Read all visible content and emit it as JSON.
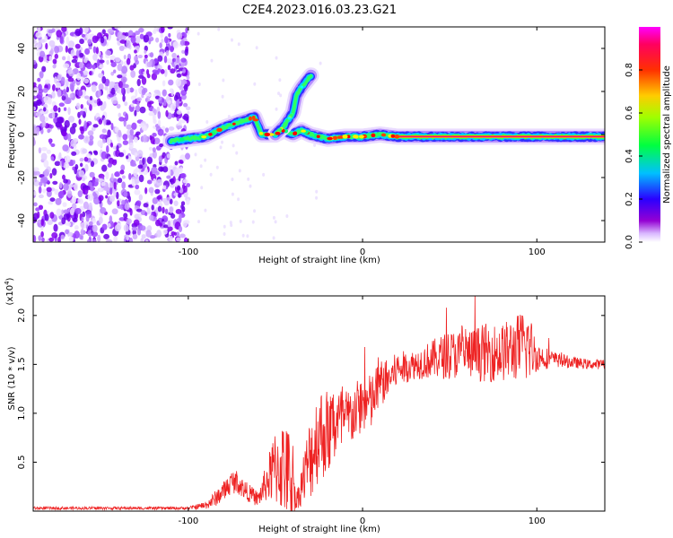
{
  "title": "C2E4.2023.016.03.23.G21",
  "chart_data": [
    {
      "type": "heatmap",
      "xlabel": "Height of straight line (km)",
      "ylabel": "Frequency (Hz)",
      "xlim": [
        -189,
        139
      ],
      "ylim": [
        -50,
        50
      ],
      "x_ticks": [
        -100,
        0,
        100
      ],
      "y_ticks": [
        -40,
        -20,
        0,
        20,
        40
      ],
      "colorbar": {
        "label": "Normalized spectral amplitude",
        "range": [
          0.0,
          1.0
        ],
        "ticks": [
          0.0,
          0.2,
          0.4,
          0.6,
          0.8
        ],
        "colors": [
          "#ffffff",
          "#9400d3",
          "#0000ff",
          "#00ffff",
          "#00ff00",
          "#ffff00",
          "#ff7f00",
          "#ff0000",
          "#ff00ff"
        ]
      },
      "noise_region_x": [
        -189,
        -100
      ],
      "signal_track": {
        "x": [
          -110,
          -100,
          -90,
          -80,
          -70,
          -62,
          -58,
          -50,
          -45,
          -40,
          -35,
          -30,
          -20,
          -10,
          0,
          10,
          20,
          40,
          60,
          80,
          100,
          120,
          139
        ],
        "y": [
          -3,
          -2,
          -1,
          3,
          6,
          8,
          0,
          0,
          2,
          0,
          2,
          0,
          -2,
          -1,
          -1,
          0,
          -1,
          -1,
          -1,
          -1,
          -1,
          -1,
          -1
        ]
      },
      "branch_track": {
        "x": [
          -50,
          -45,
          -40,
          -38,
          -35,
          -32,
          -29
        ],
        "y": [
          0,
          4,
          10,
          18,
          22,
          25,
          28
        ]
      }
    },
    {
      "type": "line",
      "xlabel": "Height of straight line (km)",
      "ylabel": "SNR (10 * v/v)",
      "y_multiplier": "(x10",
      "y_multiplier_exp": "4",
      "y_multiplier_close": ")",
      "xlim": [
        -189,
        139
      ],
      "ylim": [
        0,
        2.2
      ],
      "x_ticks": [
        -100,
        0,
        100
      ],
      "y_ticks": [
        0.5,
        1.0,
        1.5,
        2.0
      ],
      "y_tick_labels": [
        "0.5",
        "1.0",
        "1.5",
        "2.0"
      ],
      "color": "#ee2222",
      "envelope": {
        "x": [
          -189,
          -100,
          -90,
          -85,
          -80,
          -75,
          -72,
          -68,
          -60,
          -55,
          -50,
          -45,
          -40,
          -38,
          -30,
          -25,
          -20,
          -15,
          -10,
          -5,
          0,
          5,
          10,
          15,
          20,
          30,
          40,
          50,
          60,
          70,
          80,
          90,
          95,
          100,
          110,
          120,
          130,
          139
        ],
        "mean": [
          0.03,
          0.03,
          0.06,
          0.12,
          0.2,
          0.3,
          0.3,
          0.22,
          0.12,
          0.3,
          0.45,
          0.45,
          0.3,
          0.1,
          0.55,
          0.8,
          0.8,
          0.9,
          0.9,
          1.0,
          1.1,
          1.1,
          1.3,
          1.35,
          1.45,
          1.5,
          1.55,
          1.6,
          1.6,
          1.62,
          1.62,
          1.68,
          1.7,
          1.58,
          1.55,
          1.52,
          1.5,
          1.5
        ],
        "spread": [
          0.015,
          0.015,
          0.04,
          0.08,
          0.1,
          0.12,
          0.12,
          0.1,
          0.08,
          0.2,
          0.4,
          0.5,
          0.45,
          0.08,
          0.45,
          0.5,
          0.45,
          0.4,
          0.35,
          0.3,
          0.3,
          0.3,
          0.25,
          0.2,
          0.18,
          0.15,
          0.2,
          0.25,
          0.25,
          0.3,
          0.3,
          0.35,
          0.4,
          0.15,
          0.08,
          0.06,
          0.05,
          0.05
        ]
      }
    }
  ]
}
